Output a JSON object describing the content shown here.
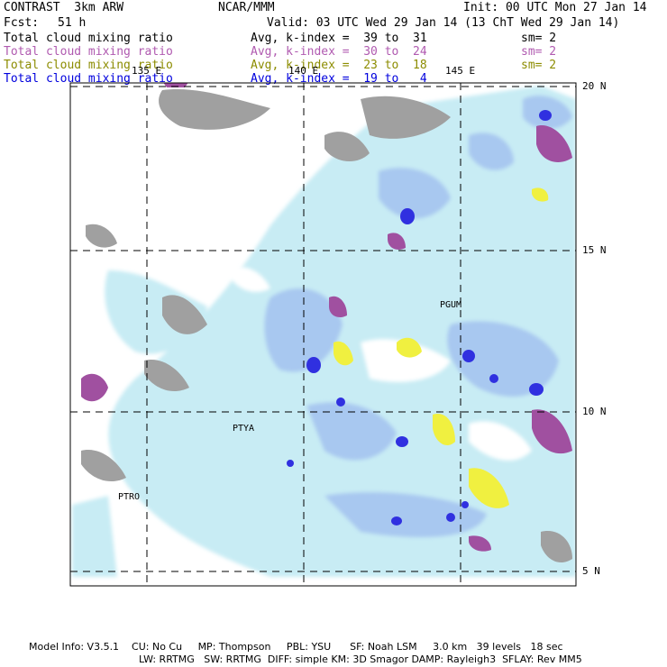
{
  "header": {
    "title": "CONTRAST  3km ARW",
    "center": "NCAR/MMM",
    "init": "Init: 00 UTC Mon 27 Jan 14",
    "fcst_label": "Fcst:",
    "fcst_value": "51 h",
    "valid": "Valid: 03 UTC Wed 29 Jan 14 (13 ChT Wed 29 Jan 14)"
  },
  "legend_rows": [
    {
      "field": "Total cloud mixing ratio",
      "index": "Avg, k-index =  39 to  31",
      "sm": "sm= 2",
      "color": "#000000"
    },
    {
      "field": "Total cloud mixing ratio",
      "index": "Avg, k-index =  30 to  24",
      "sm": "sm= 2",
      "color": "#b05ab0"
    },
    {
      "field": "Total cloud mixing ratio",
      "index": "Avg, k-index =  23 to  18",
      "sm": "sm= 2",
      "color": "#8c8c00"
    },
    {
      "field": "Total cloud mixing ratio",
      "index": "Avg, k-index =  19 to   4",
      "sm": "",
      "color": "#0000dd"
    }
  ],
  "lon_labels": [
    "135 E",
    "140 E",
    "145 E"
  ],
  "lat_labels": [
    "20 N",
    "15 N",
    "10 N",
    "5 N"
  ],
  "stations": [
    "PGUM",
    "PTYA",
    "PTRO"
  ],
  "footer": {
    "line1": "Model Info: V3.5.1    CU: No Cu     MP: Thompson     PBL: YSU      SF: Noah LSM     3.0 km   39 levels   18 sec",
    "line2": "LW: RRTMG   SW: RRTMG  DIFF: simple KM: 3D Smagor DAMP: Rayleigh3  SFLAY: Rev MM5"
  },
  "colors": {
    "light_cloud": "#c8ecf4",
    "mid_cloud": "#a8c8f0",
    "deep_cloud": "#3030e0",
    "gray_cloud": "#a0a0a0",
    "purple_cloud": "#a050a0",
    "yellow_cloud": "#f0f040"
  }
}
